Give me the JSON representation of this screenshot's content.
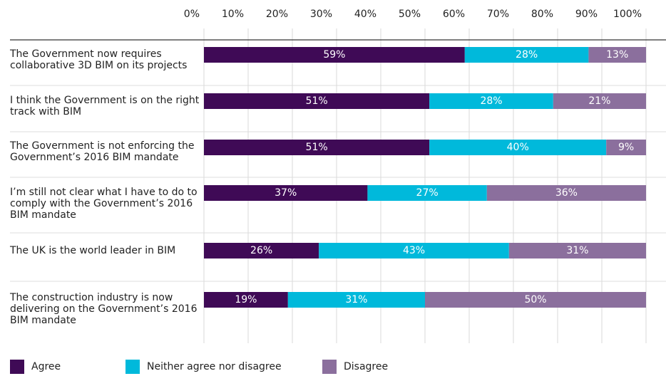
{
  "chart_data": {
    "type": "stacked-bar-horizontal",
    "categories": [
      "The Government now requires collaborative 3D BIM on its projects",
      "I think the Government is on the right track with BIM",
      "The Government is not enforcing the Government’s 2016 BIM mandate",
      "I’m still not clear what I have to do to comply with the Government’s 2016 BIM mandate",
      "The UK is the world leader in BIM",
      "The construction industry is now delivering on the Government’s 2016 BIM mandate"
    ],
    "series": [
      {
        "name": "Agree",
        "color": "#3f0a56",
        "values": [
          59,
          51,
          51,
          37,
          26,
          19
        ],
        "value_labels": [
          "59%",
          "51%",
          "51%",
          "37%",
          "26%",
          "19%"
        ]
      },
      {
        "name": "Neither agree nor disagree",
        "color": "#00b9db",
        "values": [
          28,
          28,
          40,
          27,
          43,
          31
        ],
        "value_labels": [
          "28%",
          "28%",
          "40%",
          "27%",
          "43%",
          "31%"
        ]
      },
      {
        "name": "Disagree",
        "color": "#8b6f9d",
        "values": [
          13,
          21,
          9,
          36,
          31,
          50
        ],
        "value_labels": [
          "13%",
          "21%",
          "9%",
          "36%",
          "31%",
          "50%"
        ]
      }
    ],
    "xlim": [
      0,
      100
    ],
    "xticks": [
      {
        "value": 0,
        "label": "0%"
      },
      {
        "value": 10,
        "label": "10%"
      },
      {
        "value": 20,
        "label": "20%"
      },
      {
        "value": 30,
        "label": "30%"
      },
      {
        "value": 40,
        "label": "40%"
      },
      {
        "value": 50,
        "label": "50%"
      },
      {
        "value": 60,
        "label": "60%"
      },
      {
        "value": 70,
        "label": "70%"
      },
      {
        "value": 80,
        "label": "80%"
      },
      {
        "value": 90,
        "label": "90%"
      },
      {
        "value": 100,
        "label": "100%"
      }
    ],
    "grid": true,
    "legend": "bottom"
  }
}
